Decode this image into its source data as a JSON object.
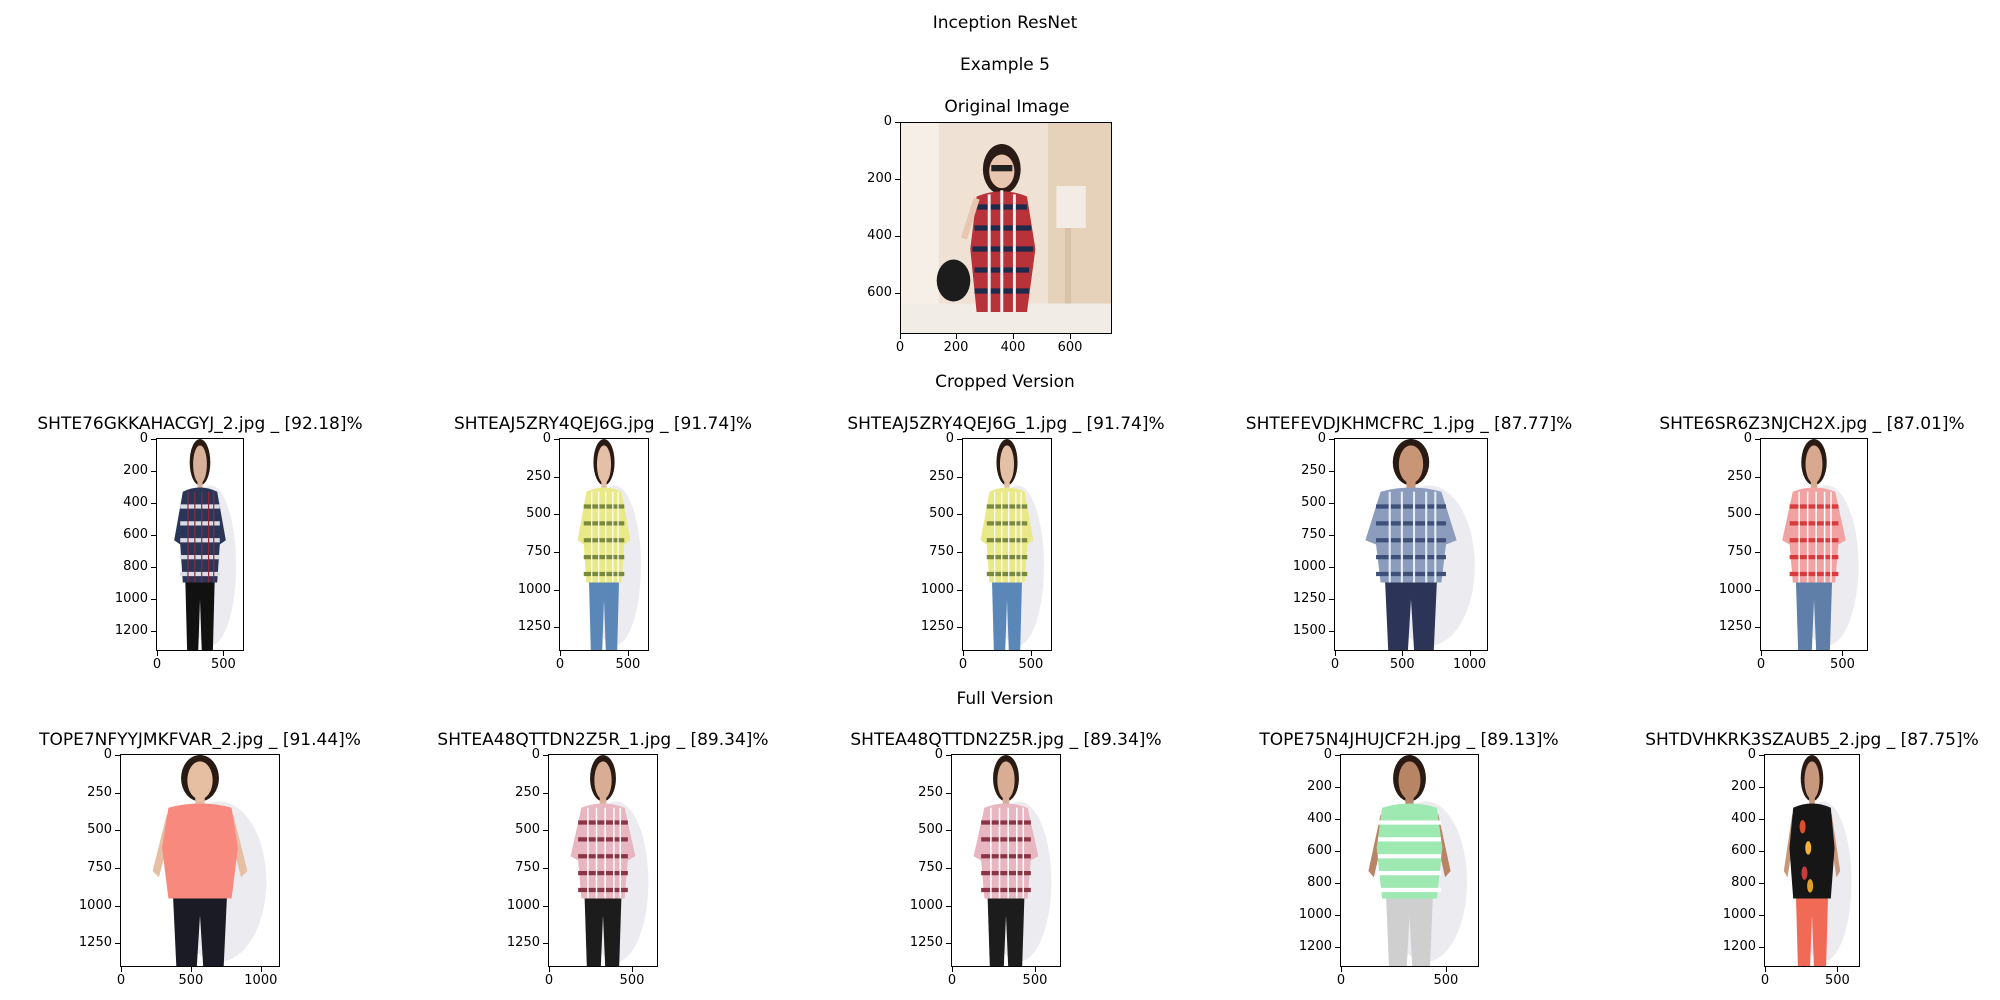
{
  "title": "Inception ResNet",
  "subtitle": "Example 5",
  "original": {
    "title": "Original Image",
    "yticks": [
      "0",
      "200",
      "400",
      "600"
    ],
    "xticks": [
      "0",
      "200",
      "400",
      "600"
    ],
    "photo": {
      "background": "#efe2d4",
      "garment": "red-navy-plaid-shirt",
      "skin": "#e8c6b0"
    }
  },
  "cropped": {
    "title": "Cropped Version",
    "items": [
      {
        "title": "SHTE76GKKAHACGYJ_2.jpg _ [92.18]%",
        "yticks": [
          "0",
          "200",
          "400",
          "600",
          "800",
          "1000",
          "1200"
        ],
        "xticks": [
          "0",
          "500"
        ],
        "photo": {
          "background": "#ffffff",
          "garment": "navy-plaid-shirt",
          "skin": "#d8b09a"
        }
      },
      {
        "title": "SHTEAJ5ZRY4QEJ6G.jpg _ [91.74]%",
        "yticks": [
          "0",
          "250",
          "500",
          "750",
          "1000",
          "1250"
        ],
        "xticks": [
          "0",
          "500"
        ],
        "photo": {
          "background": "#ffffff",
          "garment": "yellow-plaid-shirt",
          "skin": "#e4c0a6"
        }
      },
      {
        "title": "SHTEAJ5ZRY4QEJ6G_1.jpg _ [91.74]%",
        "yticks": [
          "0",
          "250",
          "500",
          "750",
          "1000",
          "1250"
        ],
        "xticks": [
          "0",
          "500"
        ],
        "photo": {
          "background": "#ffffff",
          "garment": "yellow-plaid-shirt",
          "skin": "#e4c0a6"
        }
      },
      {
        "title": "SHTEFEVDJKHMCFRC_1.jpg _ [87.77]%",
        "yticks": [
          "0",
          "250",
          "500",
          "750",
          "1000",
          "1250",
          "1500"
        ],
        "xticks": [
          "0",
          "500",
          "1000"
        ],
        "photo": {
          "background": "#ffffff",
          "garment": "blue-check-shirt",
          "skin": "#c99577"
        }
      },
      {
        "title": "SHTE6SR6Z3NJCH2X.jpg _ [87.01]%",
        "yticks": [
          "0",
          "250",
          "500",
          "750",
          "1000",
          "1250"
        ],
        "xticks": [
          "0",
          "500"
        ],
        "photo": {
          "background": "#ffffff",
          "garment": "red-white-plaid-shirt",
          "skin": "#d7a98e"
        }
      }
    ]
  },
  "full": {
    "title": "Full Version",
    "items": [
      {
        "title": "TOPE7NFYYJMKFVAR_2.jpg _ [91.44]%",
        "yticks": [
          "0",
          "250",
          "500",
          "750",
          "1000",
          "1250"
        ],
        "xticks": [
          "0",
          "500",
          "1000"
        ],
        "photo": {
          "background": "#ffffff",
          "garment": "coral-sleeveless-top",
          "skin": "#e6bfa3"
        }
      },
      {
        "title": "SHTEA48QTTDN2Z5R_1.jpg _ [89.34]%",
        "yticks": [
          "0",
          "250",
          "500",
          "750",
          "1000",
          "1250"
        ],
        "xticks": [
          "0",
          "500"
        ],
        "photo": {
          "background": "#ffffff",
          "garment": "pink-plaid-shirt",
          "skin": "#d9ad93"
        }
      },
      {
        "title": "SHTEA48QTTDN2Z5R.jpg _ [89.34]%",
        "yticks": [
          "0",
          "250",
          "500",
          "750",
          "1000",
          "1250"
        ],
        "xticks": [
          "0",
          "500"
        ],
        "photo": {
          "background": "#ffffff",
          "garment": "pink-plaid-shirt",
          "skin": "#d9ad93"
        }
      },
      {
        "title": "TOPE75N4JHUJCF2H.jpg _ [89.13]%",
        "yticks": [
          "0",
          "200",
          "400",
          "600",
          "800",
          "1000",
          "1200"
        ],
        "xticks": [
          "0",
          "500"
        ],
        "photo": {
          "background": "#ffffff",
          "garment": "mint-striped-top",
          "skin": "#b78466"
        }
      },
      {
        "title": "SHTDVHKRK3SZAUB5_2.jpg _ [87.75]%",
        "yticks": [
          "0",
          "200",
          "400",
          "600",
          "800",
          "1000",
          "1200"
        ],
        "xticks": [
          "0",
          "500"
        ],
        "photo": {
          "background": "#ffffff",
          "garment": "black-floral-top",
          "skin": "#c8987c"
        }
      }
    ]
  }
}
